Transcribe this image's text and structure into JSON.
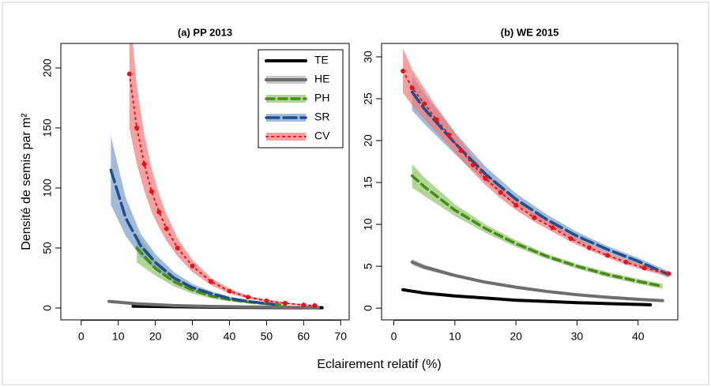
{
  "xlabel": "Eclairement relatif (%)",
  "ylabel": "Densité de semis par m²",
  "chart_data": [
    {
      "type": "line",
      "title": "(a) PP 2013",
      "legend": "top-right",
      "xlim": [
        -5.5,
        72.3
      ],
      "ylim": [
        -9.9,
        220.4
      ],
      "xticks": [
        0,
        10,
        20,
        30,
        40,
        50,
        60,
        70
      ],
      "yticks": [
        0,
        50,
        100,
        150,
        200
      ],
      "series": [
        {
          "name": "TE",
          "color": "#000000",
          "style": "solid",
          "x": [
            14,
            25,
            35,
            45,
            55,
            65
          ],
          "values": [
            1.5,
            1,
            0.7,
            0.5,
            0.3,
            0.2
          ]
        },
        {
          "name": "HE",
          "color": "#6e6e6e",
          "band_color": "#b0b0b0",
          "style": "solid",
          "x": [
            7.5,
            15,
            25,
            35,
            45,
            55,
            64
          ],
          "values": [
            5.5,
            3.5,
            2,
            1.3,
            0.9,
            0.6,
            0.4
          ],
          "lower": [
            4.8,
            3,
            1.7,
            1.1,
            0.7,
            0.4,
            0.2
          ],
          "upper": [
            6.2,
            4,
            2.3,
            1.5,
            1.1,
            0.8,
            0.6
          ]
        },
        {
          "name": "PH",
          "color": "#4a8a1c",
          "band_color": "#8fc56a",
          "style": "dashed",
          "x": [
            15,
            20,
            25,
            30,
            35,
            40,
            45,
            50,
            55
          ],
          "values": [
            50,
            33,
            22,
            15,
            10,
            7,
            5,
            3.5,
            2.5
          ],
          "lower": [
            38,
            27,
            18,
            12,
            8,
            5.5,
            3.8,
            2.6,
            1.8
          ],
          "upper": [
            62,
            40,
            27,
            18,
            12,
            8.5,
            6.2,
            4.4,
            3.2
          ]
        },
        {
          "name": "SR",
          "color": "#1f4e8c",
          "band_color": "#7a9dc8",
          "style": "longdash",
          "x": [
            8,
            12,
            16,
            20,
            25,
            30,
            35,
            40,
            45,
            52
          ],
          "values": [
            115,
            75,
            52,
            38,
            25,
            17,
            12,
            8,
            5.5,
            3
          ],
          "lower": [
            86,
            60,
            43,
            32,
            21,
            14,
            10,
            6.5,
            4.3,
            2.2
          ],
          "upper": [
            143,
            92,
            62,
            45,
            30,
            20,
            14,
            9.5,
            6.7,
            3.8
          ]
        },
        {
          "name": "CV",
          "color": "#e3121b",
          "band_color": "#f27777",
          "style": "dotted",
          "x": [
            13,
            15,
            17,
            19,
            21,
            23,
            26,
            30,
            35,
            40,
            45,
            50,
            55,
            60,
            63
          ],
          "values": [
            195,
            150,
            120,
            97,
            80,
            66,
            50,
            35,
            22,
            14,
            9,
            6,
            4,
            2.5,
            2
          ],
          "lower": [
            150,
            120,
            98,
            80,
            67,
            56,
            43,
            30,
            19,
            12,
            7.8,
            5,
            3.3,
            2,
            1.6
          ],
          "upper": [
            250,
            185,
            145,
            116,
            95,
            78,
            58,
            40,
            25,
            16,
            10.3,
            7,
            4.8,
            3,
            2.5
          ]
        }
      ]
    },
    {
      "type": "line",
      "title": "(b) WE 2015",
      "xlim": [
        -2,
        46.5
      ],
      "ylim": [
        -1.4,
        31.6
      ],
      "xticks": [
        0,
        10,
        20,
        30,
        40
      ],
      "yticks": [
        0,
        5,
        10,
        15,
        20,
        25,
        30
      ],
      "series": [
        {
          "color": "#000000",
          "style": "solid",
          "x": [
            1.5,
            5,
            10,
            15,
            20,
            25,
            30,
            35,
            42
          ],
          "values": [
            2.2,
            1.8,
            1.45,
            1.2,
            0.95,
            0.8,
            0.65,
            0.55,
            0.4
          ]
        },
        {
          "color": "#6e6e6e",
          "band_color": "#b0b0b0",
          "style": "solid",
          "x": [
            3,
            5,
            10,
            15,
            20,
            25,
            30,
            35,
            40,
            44
          ],
          "values": [
            5.5,
            4.9,
            3.9,
            3.1,
            2.5,
            2.0,
            1.6,
            1.3,
            1.05,
            0.9
          ],
          "lower": [
            5.1,
            4.6,
            3.7,
            2.95,
            2.38,
            1.9,
            1.52,
            1.22,
            0.98,
            0.83
          ],
          "upper": [
            5.9,
            5.2,
            4.1,
            3.25,
            2.62,
            2.1,
            1.68,
            1.38,
            1.12,
            0.97
          ]
        },
        {
          "color": "#4a8a1c",
          "band_color": "#8fc56a",
          "style": "dashed",
          "x": [
            3,
            5,
            10,
            15,
            20,
            25,
            30,
            35,
            40,
            44
          ],
          "values": [
            15.8,
            14.5,
            11.7,
            9.5,
            7.7,
            6.2,
            5.0,
            4.0,
            3.2,
            2.6
          ],
          "lower": [
            14.4,
            13.4,
            11,
            9,
            7.3,
            5.9,
            4.7,
            3.7,
            2.9,
            2.3
          ],
          "upper": [
            17.2,
            15.6,
            12.4,
            10,
            8.1,
            6.5,
            5.3,
            4.3,
            3.5,
            2.9
          ]
        },
        {
          "color": "#1f4e8c",
          "band_color": "#7a9dc8",
          "style": "longdash",
          "x": [
            3,
            5,
            10,
            15,
            20,
            25,
            30,
            35,
            40,
            45
          ],
          "values": [
            25.8,
            23.8,
            19.7,
            16.0,
            13.0,
            10.6,
            8.6,
            7.0,
            5.6,
            4.0
          ],
          "lower": [
            23.6,
            22,
            18.4,
            15.1,
            12.3,
            10,
            8.1,
            6.6,
            5.2,
            3.6
          ],
          "upper": [
            27.8,
            25.6,
            21,
            16.9,
            13.7,
            11.2,
            9.1,
            7.4,
            6,
            4.4
          ]
        },
        {
          "color": "#e3121b",
          "band_color": "#f27777",
          "style": "dotted",
          "x": [
            1.5,
            3,
            5,
            7,
            9,
            11,
            13,
            15,
            17.5,
            20,
            23,
            26,
            29,
            32,
            35,
            38,
            41,
            45
          ],
          "values": [
            28.3,
            26.3,
            24.4,
            22.5,
            20.7,
            18.8,
            17.1,
            15.5,
            13.8,
            12.3,
            10.8,
            9.6,
            8.3,
            7.2,
            6.3,
            5.5,
            4.8,
            4.1
          ],
          "lower": [
            25.7,
            24.2,
            22.6,
            21,
            19.4,
            17.7,
            16.2,
            14.7,
            13.1,
            11.7,
            10.3,
            9.1,
            7.9,
            6.9,
            6,
            5.2,
            4.5,
            3.8
          ],
          "upper": [
            31,
            28.5,
            26.2,
            24,
            22,
            19.9,
            18,
            16.3,
            14.5,
            12.9,
            11.3,
            10.1,
            8.7,
            7.6,
            6.6,
            5.8,
            5.1,
            4.4
          ]
        }
      ]
    }
  ]
}
